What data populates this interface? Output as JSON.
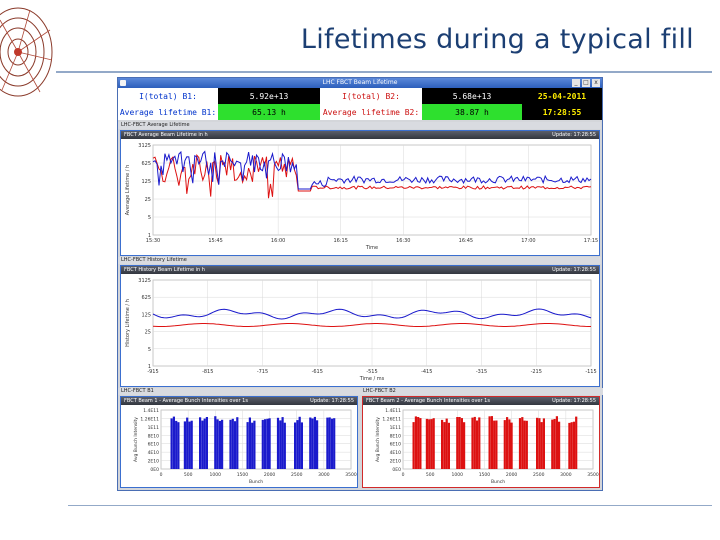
{
  "slide": {
    "title": "Lifetimes during a typical fill"
  },
  "window": {
    "title": "LHC FBCT Beam Lifetime",
    "min_label": "_",
    "max_label": "□",
    "close_label": "x"
  },
  "summary": {
    "b1_total_label": "I(total) B1:",
    "b1_total_value": "5.92e+13",
    "b2_total_label": "I(total) B2:",
    "b2_total_value": "5.68e+13",
    "date": "25-04-2011",
    "b1_life_label": "Average lifetime B1:",
    "b1_life_value": "65.13 h",
    "b2_life_label": "Average lifetime B2:",
    "b2_life_value": "38.87 h",
    "time": "17:28:55"
  },
  "panels": {
    "avg": {
      "section": "LHC-FBCT Average Lifetime",
      "title": "FBCT Average Beam Lifetime in h",
      "update": "Update: 17:28:55",
      "ylabel": "Average Lifetime / h",
      "xlabel": "Time",
      "yticks": [
        "3125",
        "625",
        "125",
        "25",
        "5",
        "1"
      ],
      "xticks": [
        "15:30",
        "15:45",
        "16:00",
        "16:15",
        "16:30",
        "16:45",
        "17:00",
        "17:15"
      ]
    },
    "hist": {
      "section": "LHC-FBCT History Lifetime",
      "title": "FBCT History Beam Lifetime in h",
      "update": "Update: 17:28:55",
      "ylabel": "History Lifetime / h",
      "xlabel": "Time / ms",
      "yticks": [
        "3125",
        "625",
        "125",
        "25",
        "5",
        "1"
      ],
      "xticks": [
        "-915",
        "-815",
        "-715",
        "-615",
        "-515",
        "-415",
        "-315",
        "-215",
        "-115"
      ]
    },
    "b1": {
      "section": "LHC-FBCT B1",
      "title": "FBCT Beam 1 - Average Bunch Intensities over 1s",
      "update": "Update: 17:28:55",
      "ylabel": "Avg Bunch Intensity",
      "xlabel": "Bunch",
      "yticks": [
        "1.4E11",
        "1.26E11",
        "1E11",
        "8E10",
        "6E10",
        "4E10",
        "2E10",
        "0E0"
      ],
      "xticks": [
        "0",
        "500",
        "1000",
        "1500",
        "2000",
        "2500",
        "3000",
        "3500"
      ]
    },
    "b2": {
      "section": "LHC-FBCT B2",
      "title": "FBCT Beam 2 - Average Bunch Intensities over 1s",
      "update": "Update: 17:28:55",
      "ylabel": "Avg Bunch Intensity",
      "xlabel": "Bunch",
      "yticks": [
        "1.4E11",
        "1.26E11",
        "1E11",
        "8E10",
        "6E10",
        "4E10",
        "2E10",
        "0E0"
      ],
      "xticks": [
        "0",
        "500",
        "1000",
        "1500",
        "2000",
        "2500",
        "3000",
        "3500"
      ]
    }
  },
  "colors": {
    "beam1": "#1a1acc",
    "beam2": "#dd1111",
    "grid": "#d8d8d8"
  }
}
